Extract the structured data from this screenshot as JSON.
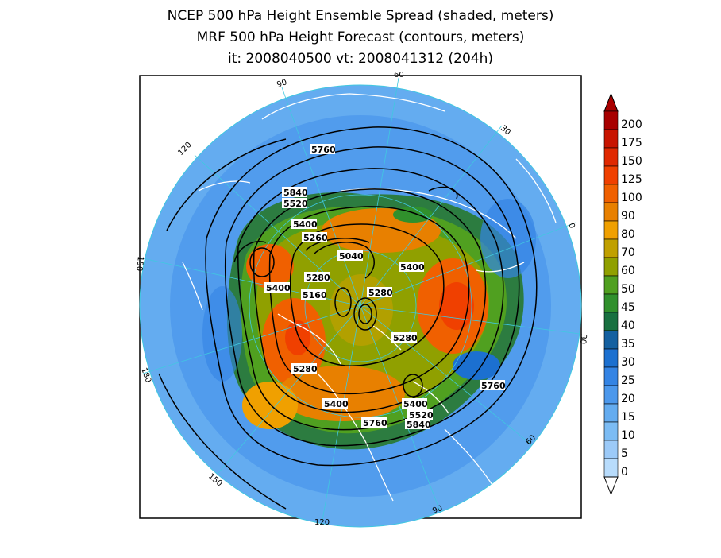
{
  "header": {
    "title_line1": "NCEP 500 hPa Height Ensemble Spread (shaded, meters)",
    "title_line2": "MRF 500 hPa Height Forecast (contours, meters)",
    "title_line3": "it: 2008040500     vt: 2008041312 (204h)"
  },
  "map": {
    "projection": "north-polar-stereographic",
    "longitude_labels": [
      "60",
      "30",
      "0",
      "30",
      "60",
      "90",
      "120",
      "150",
      "180",
      "150",
      "120",
      "90"
    ],
    "contour_labels": [
      "5760",
      "5840",
      "5520",
      "5400",
      "5260",
      "5040",
      "5400",
      "5280",
      "5160",
      "5400",
      "5280",
      "5280",
      "5280",
      "5760",
      "5400",
      "5400",
      "5520",
      "5840",
      "5760"
    ],
    "colors": {
      "land_outline": "#ffffff",
      "contour": "#000000",
      "grid": "#40c8e0"
    }
  },
  "colorbar": {
    "levels": [
      "200",
      "175",
      "150",
      "125",
      "100",
      "90",
      "80",
      "70",
      "60",
      "50",
      "45",
      "40",
      "35",
      "30",
      "25",
      "20",
      "15",
      "10",
      "5",
      "0"
    ],
    "colors": [
      "#a80000",
      "#c81400",
      "#e02800",
      "#f04000",
      "#f06000",
      "#e88000",
      "#f0a000",
      "#c0a000",
      "#90a000",
      "#50a020",
      "#30902c",
      "#187040",
      "#1460a0",
      "#1c70d0",
      "#3484e4",
      "#4c98ec",
      "#64acf0",
      "#7cbcf4",
      "#9ccaf8",
      "#b8dcfc"
    ]
  }
}
